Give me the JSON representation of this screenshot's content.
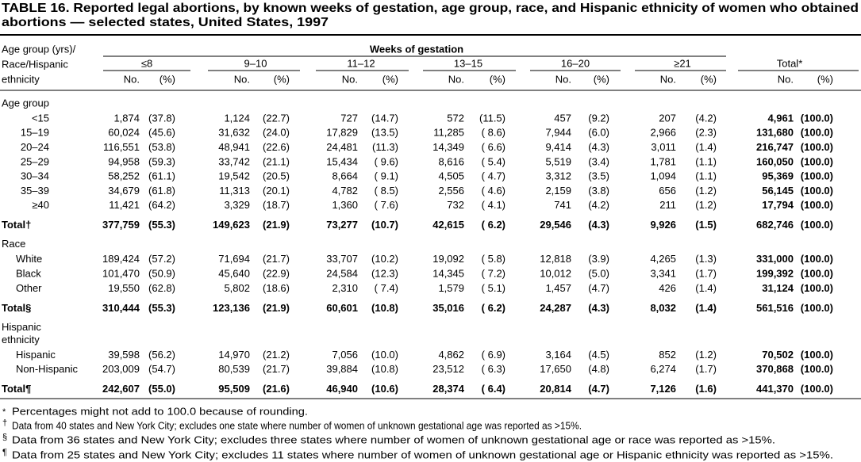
{
  "title": [
    "TABLE 16. Reported legal abortions, by known weeks of gestation, age group, race, and Hispanic ethnicity of women who obtained",
    "abortions — selected states, United States, 1997"
  ],
  "header": {
    "row_label": [
      "Age group (yrs)/",
      "Race/Hispanic",
      "ethnicity"
    ],
    "spanner": "Weeks of gestation",
    "groups": [
      "≤8",
      "9–10",
      "11–12",
      "13–15",
      "16–20",
      "≥21",
      "Total*"
    ],
    "no": "No.",
    "pct": "(%)"
  },
  "sections": [
    {
      "title": [
        "Age group"
      ],
      "rows": [
        {
          "label": "<15",
          "cells": [
            "1,874",
            "(37.8)",
            "1,124",
            "(22.7)",
            "727",
            "(14.7)",
            "572",
            "(11.5)",
            "457",
            "(9.2)",
            "207",
            "(4.2)",
            "4,961",
            "(100.0)"
          ]
        },
        {
          "label": "15–19",
          "cells": [
            "60,024",
            "(45.6)",
            "31,632",
            "(24.0)",
            "17,829",
            "(13.5)",
            "11,285",
            "( 8.6)",
            "7,944",
            "(6.0)",
            "2,966",
            "(2.3)",
            "131,680",
            "(100.0)"
          ]
        },
        {
          "label": "20–24",
          "cells": [
            "116,551",
            "(53.8)",
            "48,941",
            "(22.6)",
            "24,481",
            "(11.3)",
            "14,349",
            "( 6.6)",
            "9,414",
            "(4.3)",
            "3,011",
            "(1.4)",
            "216,747",
            "(100.0)"
          ]
        },
        {
          "label": "25–29",
          "cells": [
            "94,958",
            "(59.3)",
            "33,742",
            "(21.1)",
            "15,434",
            "( 9.6)",
            "8,616",
            "( 5.4)",
            "5,519",
            "(3.4)",
            "1,781",
            "(1.1)",
            "160,050",
            "(100.0)"
          ]
        },
        {
          "label": "30–34",
          "cells": [
            "58,252",
            "(61.1)",
            "19,542",
            "(20.5)",
            "8,664",
            "( 9.1)",
            "4,505",
            "( 4.7)",
            "3,312",
            "(3.5)",
            "1,094",
            "(1.1)",
            "95,369",
            "(100.0)"
          ]
        },
        {
          "label": "35–39",
          "cells": [
            "34,679",
            "(61.8)",
            "11,313",
            "(20.1)",
            "4,782",
            "( 8.5)",
            "2,556",
            "( 4.6)",
            "2,159",
            "(3.8)",
            "656",
            "(1.2)",
            "56,145",
            "(100.0)"
          ]
        },
        {
          "label": "≥40",
          "cells": [
            "11,421",
            "(64.2)",
            "3,329",
            "(18.7)",
            "1,360",
            "( 7.6)",
            "732",
            "( 4.1)",
            "741",
            "(4.2)",
            "211",
            "(1.2)",
            "17,794",
            "(100.0)"
          ]
        }
      ],
      "total": {
        "label": "Total†",
        "cells": [
          "377,759",
          "(55.3)",
          "149,623",
          "(21.9)",
          "73,277",
          "(10.7)",
          "42,615",
          "( 6.2)",
          "29,546",
          "(4.3)",
          "9,926",
          "(1.5)",
          "682,746",
          "(100.0)"
        ]
      }
    },
    {
      "title": [
        "Race"
      ],
      "rows": [
        {
          "label": "White",
          "cells": [
            "189,424",
            "(57.2)",
            "71,694",
            "(21.7)",
            "33,707",
            "(10.2)",
            "19,092",
            "( 5.8)",
            "12,818",
            "(3.9)",
            "4,265",
            "(1.3)",
            "331,000",
            "(100.0)"
          ]
        },
        {
          "label": "Black",
          "cells": [
            "101,470",
            "(50.9)",
            "45,640",
            "(22.9)",
            "24,584",
            "(12.3)",
            "14,345",
            "( 7.2)",
            "10,012",
            "(5.0)",
            "3,341",
            "(1.7)",
            "199,392",
            "(100.0)"
          ]
        },
        {
          "label": "Other",
          "cells": [
            "19,550",
            "(62.8)",
            "5,802",
            "(18.6)",
            "2,310",
            "( 7.4)",
            "1,579",
            "( 5.1)",
            "1,457",
            "(4.7)",
            "426",
            "(1.4)",
            "31,124",
            "(100.0)"
          ]
        }
      ],
      "total": {
        "label": "Total§",
        "cells": [
          "310,444",
          "(55.3)",
          "123,136",
          "(21.9)",
          "60,601",
          "(10.8)",
          "35,016",
          "( 6.2)",
          "24,287",
          "(4.3)",
          "8,032",
          "(1.4)",
          "561,516",
          "(100.0)"
        ]
      }
    },
    {
      "title": [
        "Hispanic",
        "ethnicity"
      ],
      "rows": [
        {
          "label": "Hispanic",
          "cells": [
            "39,598",
            "(56.2)",
            "14,970",
            "(21.2)",
            "7,056",
            "(10.0)",
            "4,862",
            "( 6.9)",
            "3,164",
            "(4.5)",
            "852",
            "(1.2)",
            "70,502",
            "(100.0)"
          ]
        },
        {
          "label": "Non-Hispanic",
          "cells": [
            "203,009",
            "(54.7)",
            "80,539",
            "(21.7)",
            "39,884",
            "(10.8)",
            "23,512",
            "( 6.3)",
            "17,650",
            "(4.8)",
            "6,274",
            "(1.7)",
            "370,868",
            "(100.0)"
          ]
        }
      ],
      "total": {
        "label": "Total¶",
        "cells": [
          "242,607",
          "(55.0)",
          "95,509",
          "(21.6)",
          "46,940",
          "(10.6)",
          "28,374",
          "( 6.4)",
          "20,814",
          "(4.7)",
          "7,126",
          "(1.6)",
          "441,370",
          "(100.0)"
        ]
      }
    }
  ],
  "footnotes": [
    {
      "mark": "*",
      "text": "Percentages might not add to 100.0 because of rounding."
    },
    {
      "mark": "†",
      "text": "Data from 40 states and New York City; excludes one state where number of women of unknown gestational age was reported as >15%."
    },
    {
      "mark": "§",
      "text": "Data from 36 states and New York City; excludes three states where number of women of unknown gestational age or race was reported as >15%."
    },
    {
      "mark": "¶",
      "text": "Data from 25 states and New York City; excludes 11 states where number of women of unknown gestational age or Hispanic ethnicity was reported as >15%."
    }
  ]
}
